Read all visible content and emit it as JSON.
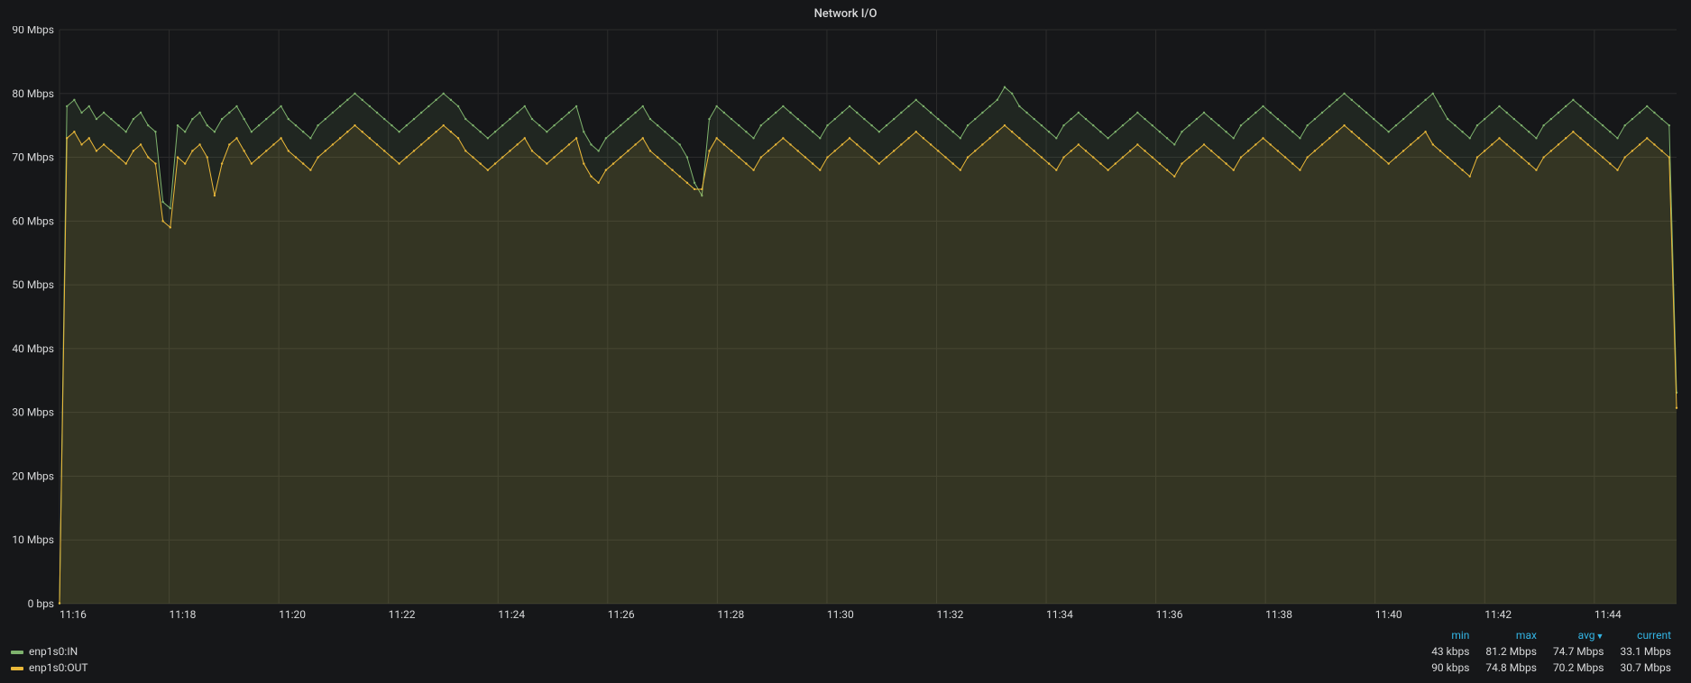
{
  "panel": {
    "title": "Network I/O"
  },
  "chart": {
    "type": "area-line",
    "background_color": "#161719",
    "grid_color": "#2c2c2c",
    "axis_label_color": "#d8d9da",
    "label_fontsize": 12,
    "ylim": [
      0,
      90
    ],
    "ytick_step": 10,
    "yticks": [
      "0 bps",
      "10 Mbps",
      "20 Mbps",
      "30 Mbps",
      "40 Mbps",
      "50 Mbps",
      "60 Mbps",
      "70 Mbps",
      "80 Mbps",
      "90 Mbps"
    ],
    "x_start_min": 16.0,
    "x_end_min": 45.5,
    "xticks_min": [
      16,
      18,
      20,
      22,
      24,
      26,
      28,
      30,
      32,
      34,
      36,
      38,
      40,
      42,
      44
    ],
    "xticks_labels": [
      "11:16",
      "11:18",
      "11:20",
      "11:22",
      "11:24",
      "11:26",
      "11:28",
      "11:30",
      "11:32",
      "11:34",
      "11:36",
      "11:38",
      "11:40",
      "11:42",
      "11:44"
    ],
    "series": [
      {
        "name": "enp1s0:IN",
        "color": "#7eb26d",
        "fill_opacity": 0.1,
        "line_width": 1,
        "marker_radius": 1.2,
        "values": [
          0.043,
          78,
          79,
          77,
          78,
          76,
          77,
          76,
          75,
          74,
          76,
          77,
          75,
          74,
          63,
          62,
          75,
          74,
          76,
          77,
          75,
          74,
          76,
          77,
          78,
          76,
          74,
          75,
          76,
          77,
          78,
          76,
          75,
          74,
          73,
          75,
          76,
          77,
          78,
          79,
          80,
          79,
          78,
          77,
          76,
          75,
          74,
          75,
          76,
          77,
          78,
          79,
          80,
          79,
          78,
          76,
          75,
          74,
          73,
          74,
          75,
          76,
          77,
          78,
          76,
          75,
          74,
          75,
          76,
          77,
          78,
          74,
          72,
          71,
          73,
          74,
          75,
          76,
          77,
          78,
          76,
          75,
          74,
          73,
          72,
          70,
          66,
          64,
          76,
          78,
          77,
          76,
          75,
          74,
          73,
          75,
          76,
          77,
          78,
          77,
          76,
          75,
          74,
          73,
          75,
          76,
          77,
          78,
          77,
          76,
          75,
          74,
          75,
          76,
          77,
          78,
          79,
          78,
          77,
          76,
          75,
          74,
          73,
          75,
          76,
          77,
          78,
          79,
          81,
          80,
          78,
          77,
          76,
          75,
          74,
          73,
          75,
          76,
          77,
          76,
          75,
          74,
          73,
          74,
          75,
          76,
          77,
          76,
          75,
          74,
          73,
          72,
          74,
          75,
          76,
          77,
          76,
          75,
          74,
          73,
          75,
          76,
          77,
          78,
          77,
          76,
          75,
          74,
          73,
          75,
          76,
          77,
          78,
          79,
          80,
          79,
          78,
          77,
          76,
          75,
          74,
          75,
          76,
          77,
          78,
          79,
          80,
          78,
          76,
          75,
          74,
          73,
          75,
          76,
          77,
          78,
          77,
          76,
          75,
          74,
          73,
          75,
          76,
          77,
          78,
          79,
          78,
          77,
          76,
          75,
          74,
          73,
          75,
          76,
          77,
          78,
          77,
          76,
          75,
          33.1
        ]
      },
      {
        "name": "enp1s0:OUT",
        "color": "#eab839",
        "fill_opacity": 0.1,
        "line_width": 1,
        "marker_radius": 1.2,
        "values": [
          0.09,
          73,
          74,
          72,
          73,
          71,
          72,
          71,
          70,
          69,
          71,
          72,
          70,
          69,
          60,
          59,
          70,
          69,
          71,
          72,
          70,
          64,
          69,
          72,
          73,
          71,
          69,
          70,
          71,
          72,
          73,
          71,
          70,
          69,
          68,
          70,
          71,
          72,
          73,
          74,
          75,
          74,
          73,
          72,
          71,
          70,
          69,
          70,
          71,
          72,
          73,
          74,
          75,
          74,
          73,
          71,
          70,
          69,
          68,
          69,
          70,
          71,
          72,
          73,
          71,
          70,
          69,
          70,
          71,
          72,
          73,
          69,
          67,
          66,
          68,
          69,
          70,
          71,
          72,
          73,
          71,
          70,
          69,
          68,
          67,
          66,
          65,
          65,
          71,
          73,
          72,
          71,
          70,
          69,
          68,
          70,
          71,
          72,
          73,
          72,
          71,
          70,
          69,
          68,
          70,
          71,
          72,
          73,
          72,
          71,
          70,
          69,
          70,
          71,
          72,
          73,
          74,
          73,
          72,
          71,
          70,
          69,
          68,
          70,
          71,
          72,
          73,
          74,
          75,
          74,
          73,
          72,
          71,
          70,
          69,
          68,
          70,
          71,
          72,
          71,
          70,
          69,
          68,
          69,
          70,
          71,
          72,
          71,
          70,
          69,
          68,
          67,
          69,
          70,
          71,
          72,
          71,
          70,
          69,
          68,
          70,
          71,
          72,
          73,
          72,
          71,
          70,
          69,
          68,
          70,
          71,
          72,
          73,
          74,
          75,
          74,
          73,
          72,
          71,
          70,
          69,
          70,
          71,
          72,
          73,
          74,
          72,
          71,
          70,
          69,
          68,
          67,
          70,
          71,
          72,
          73,
          72,
          71,
          70,
          69,
          68,
          70,
          71,
          72,
          73,
          74,
          73,
          72,
          71,
          70,
          69,
          68,
          70,
          71,
          72,
          73,
          72,
          71,
          70,
          30.7
        ]
      }
    ]
  },
  "legend": {
    "sort_column": "avg",
    "sort_dir": "desc",
    "columns": {
      "min": "min",
      "max": "max",
      "avg": "avg",
      "current": "current"
    },
    "rows": [
      {
        "swatch": "#7eb26d",
        "name": "enp1s0:IN",
        "min": "43 kbps",
        "max": "81.2 Mbps",
        "avg": "74.7 Mbps",
        "current": "33.1 Mbps"
      },
      {
        "swatch": "#eab839",
        "name": "enp1s0:OUT",
        "min": "90 kbps",
        "max": "74.8 Mbps",
        "avg": "70.2 Mbps",
        "current": "30.7 Mbps"
      }
    ]
  }
}
